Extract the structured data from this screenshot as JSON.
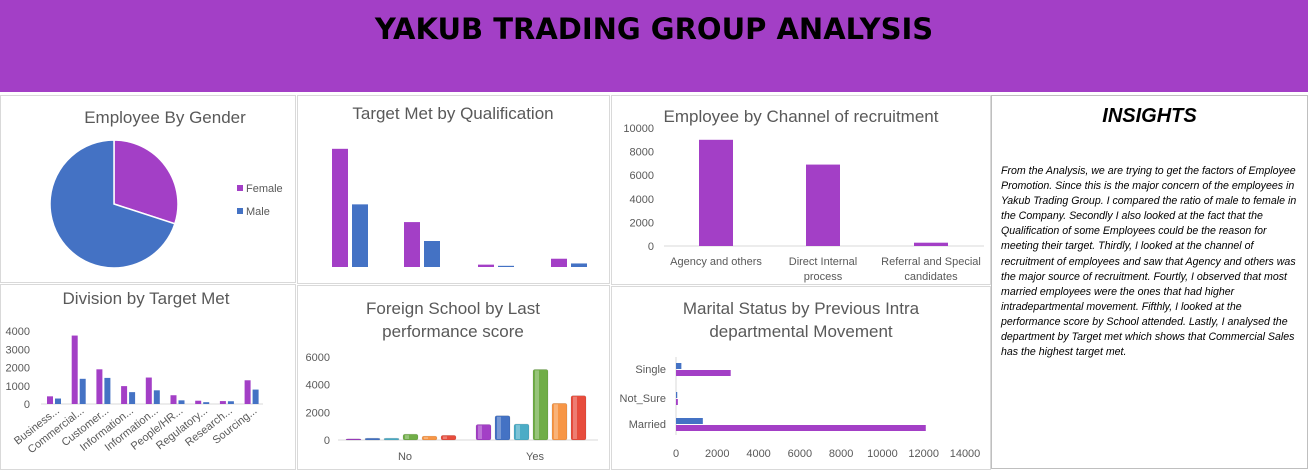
{
  "header": {
    "title": "YAKUB TRADING GROUP ANALYSIS"
  },
  "colors": {
    "banner": "#a33fc6",
    "female": "#a33fc6",
    "male": "#4472c4"
  },
  "chart_data": [
    {
      "id": "gender",
      "type": "pie",
      "title": "Employee By Gender",
      "legend_position": "right",
      "slices": [
        {
          "label": "Female",
          "value": 30,
          "color": "#a33fc6"
        },
        {
          "label": "Male",
          "value": 70,
          "color": "#4472c4"
        }
      ]
    },
    {
      "id": "qualification",
      "type": "bar",
      "title": "Target Met by Qualification",
      "categories": [
        "",
        "",
        "",
        ""
      ],
      "series": [
        {
          "color": "#a33fc6",
          "values": [
            100,
            38,
            2,
            7
          ]
        },
        {
          "color": "#4472c4",
          "values": [
            53,
            22,
            1,
            3
          ]
        }
      ],
      "ylim": [
        0,
        110
      ]
    },
    {
      "id": "channel",
      "type": "bar",
      "title": "Employee by Channel of recruitment",
      "categories": [
        [
          "Agency and others"
        ],
        [
          "Direct Internal",
          "process"
        ],
        [
          "Referral and Special",
          "candidates"
        ]
      ],
      "series": [
        {
          "color": "#a33fc6",
          "values": [
            9000,
            6900,
            280
          ]
        }
      ],
      "yticks": [
        "0",
        "2000",
        "4000",
        "6000",
        "8000",
        "10000"
      ],
      "ylim": [
        0,
        10000
      ]
    },
    {
      "id": "division",
      "type": "bar",
      "title": "Division by Target Met",
      "categories": [
        "Business...",
        "Commercial...",
        "Customer...",
        "Information...",
        "Information...",
        "People/HR...",
        "Regulatory...",
        "Research...",
        "Sourcing..."
      ],
      "series": [
        {
          "color": "#a33fc6",
          "values": [
            420,
            3750,
            1900,
            980,
            1450,
            480,
            180,
            160,
            1300
          ]
        },
        {
          "color": "#4472c4",
          "values": [
            300,
            1380,
            1430,
            650,
            750,
            200,
            100,
            150,
            790
          ]
        }
      ],
      "yticks": [
        "0",
        "1000",
        "2000",
        "3000",
        "4000"
      ],
      "ylim": [
        0,
        4000
      ]
    },
    {
      "id": "foreign",
      "type": "bar",
      "title": [
        "Foreign School by Last",
        "performance score"
      ],
      "categories": [
        "No",
        "Yes"
      ],
      "group_values": [
        [
          80,
          130,
          130,
          420,
          280,
          330
        ],
        [
          1120,
          1750,
          1150,
          5100,
          2650,
          3200
        ]
      ],
      "bar_colors": [
        "#a33fc6",
        "#4472c4",
        "#4bacc6",
        "#70ad47",
        "#f79646",
        "#e74c3c"
      ],
      "yticks": [
        "0",
        "2000",
        "4000",
        "6000"
      ],
      "ylim": [
        0,
        6000
      ]
    },
    {
      "id": "marital",
      "type": "bar",
      "orientation": "horizontal",
      "title": [
        "Marital Status by Previous Intra",
        "departmental Movement"
      ],
      "categories": [
        "Single",
        "Not_Sure",
        "Married"
      ],
      "series": [
        {
          "color": "#4472c4",
          "values": [
            260,
            60,
            1300
          ]
        },
        {
          "color": "#a33fc6",
          "values": [
            2650,
            90,
            12100
          ]
        }
      ],
      "xticks": [
        "0",
        "2000",
        "4000",
        "6000",
        "8000",
        "10000",
        "12000",
        "14000"
      ],
      "xlim": [
        0,
        14000
      ]
    }
  ],
  "insights": {
    "title": "INSIGHTS",
    "text": "From the Analysis, we are trying to get the factors of Employee Promotion. Since this is the major concern of the employees in Yakub Trading Group. I compared the ratio of male to female in the Company. Secondly I also looked at the fact that the Qualification of some Employees could be the reason for meeting their target. Thirdly, I looked at the channel of recruitment of employees and saw that Agency and others was the major source of recruitment. Fourtly, I observed that most married employees were the ones that had higher intradepartmental movement. Fifthly, I looked at the performance score by School attended. Lastly, I analysed the department by Target met which shows that Commercial Sales has the highest target met."
  }
}
